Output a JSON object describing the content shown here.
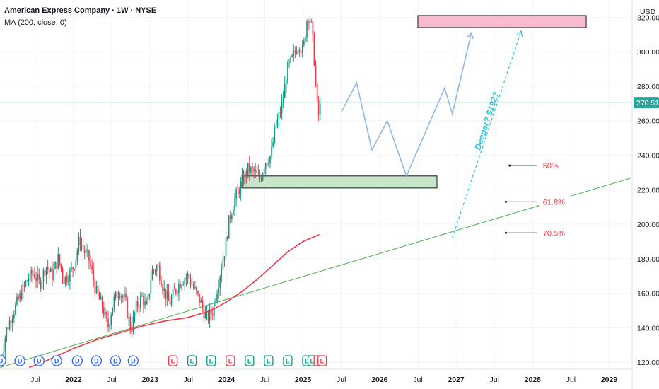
{
  "header": {
    "symbol_line": "American Express Company · 1W · NYSE",
    "indicator_line": "MA (200, close, 0)"
  },
  "price_axis": {
    "currency": "USD",
    "ticks": [
      120,
      140,
      160,
      180,
      200,
      220,
      240,
      260,
      280,
      300,
      320
    ],
    "tick_labels": [
      "120.00",
      "140.00",
      "160.00",
      "180.00",
      "200.00",
      "220.00",
      "240.00",
      "260.00",
      "280.00",
      "300.00",
      "320.00"
    ],
    "current_price": 270.51,
    "current_price_label": "270.51",
    "current_price_color": "#26a69a"
  },
  "time_axis": {
    "labels": [
      "Jul",
      "2022",
      "Jul",
      "2023",
      "Jul",
      "2024",
      "Jul",
      "2025",
      "Jul",
      "2026",
      "Jul",
      "2027",
      "Jul",
      "2028",
      "Jul",
      "2029"
    ],
    "years_at": [
      2021.5,
      2022,
      2022.5,
      2023,
      2023.5,
      2024,
      2024.5,
      2025,
      2025.5,
      2026,
      2026.5,
      2027,
      2027.5,
      2028,
      2028.5,
      2029
    ]
  },
  "chart_data": {
    "type": "candlestick",
    "title": "American Express Company · 1W · NYSE",
    "ylim": [
      116,
      330
    ],
    "xlim": [
      2021.04,
      2029.3
    ],
    "price_path": [
      [
        2021.05,
        120
      ],
      [
        2021.12,
        138
      ],
      [
        2021.2,
        148
      ],
      [
        2021.3,
        158
      ],
      [
        2021.4,
        168
      ],
      [
        2021.48,
        172
      ],
      [
        2021.56,
        165
      ],
      [
        2021.64,
        176
      ],
      [
        2021.72,
        170
      ],
      [
        2021.8,
        180
      ],
      [
        2021.88,
        168
      ],
      [
        2021.96,
        172
      ],
      [
        2022.02,
        178
      ],
      [
        2022.08,
        192
      ],
      [
        2022.12,
        186
      ],
      [
        2022.2,
        180
      ],
      [
        2022.3,
        160
      ],
      [
        2022.38,
        152
      ],
      [
        2022.45,
        140
      ],
      [
        2022.52,
        155
      ],
      [
        2022.6,
        162
      ],
      [
        2022.68,
        155
      ],
      [
        2022.75,
        138
      ],
      [
        2022.82,
        152
      ],
      [
        2022.9,
        158
      ],
      [
        2022.96,
        150
      ],
      [
        2023.02,
        172
      ],
      [
        2023.1,
        176
      ],
      [
        2023.18,
        162
      ],
      [
        2023.25,
        154
      ],
      [
        2023.33,
        162
      ],
      [
        2023.42,
        168
      ],
      [
        2023.5,
        170
      ],
      [
        2023.58,
        162
      ],
      [
        2023.66,
        155
      ],
      [
        2023.74,
        145
      ],
      [
        2023.82,
        150
      ],
      [
        2023.9,
        168
      ],
      [
        2023.98,
        186
      ],
      [
        2024.04,
        204
      ],
      [
        2024.12,
        216
      ],
      [
        2024.2,
        224
      ],
      [
        2024.28,
        232
      ],
      [
        2024.36,
        230
      ],
      [
        2024.44,
        226
      ],
      [
        2024.5,
        236
      ],
      [
        2024.58,
        240
      ],
      [
        2024.64,
        256
      ],
      [
        2024.72,
        268
      ],
      [
        2024.8,
        290
      ],
      [
        2024.88,
        298
      ],
      [
        2024.94,
        305
      ],
      [
        2025.0,
        300
      ],
      [
        2025.06,
        322
      ],
      [
        2025.1,
        318
      ],
      [
        2025.14,
        300
      ],
      [
        2025.18,
        270
      ],
      [
        2025.21,
        262
      ],
      [
        2025.23,
        270.51
      ]
    ],
    "moving_average": {
      "name": "MA (200, close, 0)",
      "color": "#f23645",
      "points": [
        [
          2021.42,
          117
        ],
        [
          2021.6,
          120
        ],
        [
          2021.8,
          124
        ],
        [
          2022.0,
          128
        ],
        [
          2022.3,
          133
        ],
        [
          2022.6,
          137
        ],
        [
          2022.9,
          141
        ],
        [
          2023.2,
          144
        ],
        [
          2023.5,
          146
        ],
        [
          2023.8,
          150
        ],
        [
          2024.0,
          155
        ],
        [
          2024.2,
          161
        ],
        [
          2024.4,
          168
        ],
        [
          2024.6,
          176
        ],
        [
          2024.8,
          184
        ],
        [
          2025.0,
          190
        ],
        [
          2025.21,
          194
        ]
      ]
    },
    "trendline": {
      "color": "#4caf50",
      "from": [
        2021.04,
        117
      ],
      "to": [
        2029.3,
        227
      ]
    },
    "current_price_line": {
      "value": 270.51,
      "color": "#26a69a"
    },
    "projection_path": {
      "color": "#90b8e8",
      "points": [
        [
          2025.5,
          265
        ],
        [
          2025.7,
          282
        ],
        [
          2025.9,
          243
        ],
        [
          2026.1,
          260
        ],
        [
          2026.35,
          228
        ],
        [
          2026.85,
          279
        ],
        [
          2026.95,
          264
        ],
        [
          2027.2,
          311
        ]
      ]
    },
    "projection_dashed": {
      "color": "#26c6da",
      "from": [
        2026.95,
        192
      ],
      "to": [
        2027.85,
        312
      ],
      "annotation": "Deeper? $192?"
    },
    "supply_zone": {
      "x": [
        2026.5,
        2028.7
      ],
      "y": [
        314,
        321
      ],
      "color": "#f8bbd0"
    },
    "demand_zone": {
      "x": [
        2024.2,
        2026.75
      ],
      "y": [
        221,
        228
      ],
      "color": "#c8e6c9"
    },
    "fib_levels": [
      {
        "label": "50%",
        "price": 234,
        "x_from": 2027.7,
        "x_to": 2028.05
      },
      {
        "label": "61.8%",
        "price": 213,
        "x_from": 2027.65,
        "x_to": 2028.05
      },
      {
        "label": "70.5%",
        "price": 195,
        "x_from": 2027.65,
        "x_to": 2028.05
      }
    ],
    "event_markers": {
      "labels": [
        "D",
        "D",
        "D",
        "D",
        "D",
        "D",
        "D",
        "D",
        "E",
        "E",
        "E",
        "E",
        "E",
        "E",
        "E",
        "E",
        "E",
        "E",
        "E"
      ],
      "years": [
        2021.05,
        2021.3,
        2021.55,
        2021.78,
        2022.05,
        2022.3,
        2022.55,
        2022.78,
        2023.3,
        2023.55,
        2023.8,
        2024.05,
        2024.3,
        2024.55,
        2024.8,
        2025.05,
        2025.12,
        2025.2,
        2025.25
      ],
      "kinds": [
        "D",
        "D",
        "D",
        "D",
        "D",
        "D",
        "D",
        "D",
        "Er",
        "Eg",
        "Eg",
        "Er",
        "Eg",
        "Eg",
        "Eg",
        "Eg",
        "Eg",
        "Er",
        "Er"
      ]
    }
  }
}
